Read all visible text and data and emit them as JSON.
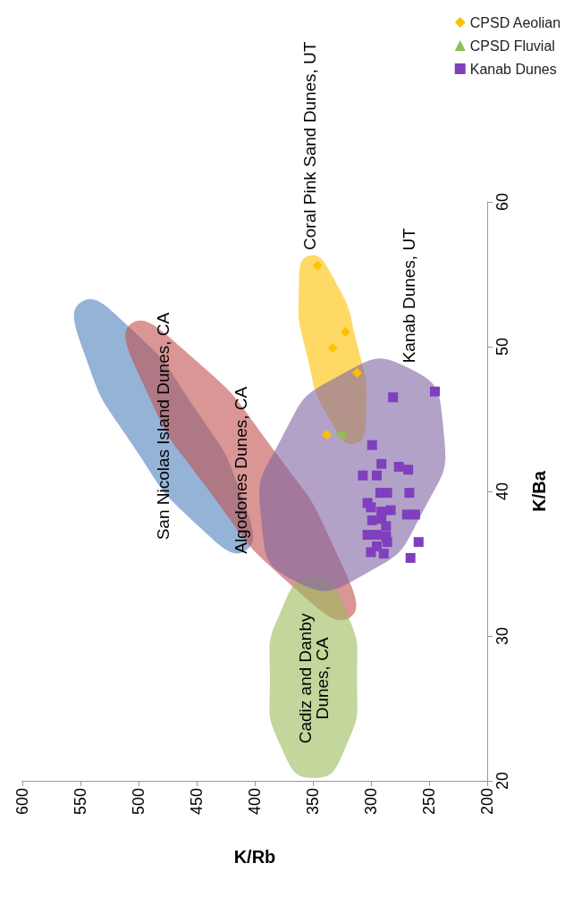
{
  "chart_data": {
    "type": "scatter",
    "xlabel": "K/Rb",
    "ylabel": "K/Ba",
    "xlim": [
      600,
      200
    ],
    "xticks": [
      600,
      550,
      500,
      450,
      400,
      350,
      300,
      250,
      200
    ],
    "ylim": [
      20,
      60
    ],
    "yticks": [
      20,
      30,
      40,
      50,
      60
    ],
    "grid": false,
    "legend": "top right",
    "series": [
      {
        "type": "area",
        "name": "San Nicolas Island Dunes, CA",
        "color": "#4f81bd",
        "values": [
          53.1,
          51.5,
          45.8,
          39.4,
          35.9,
          37.5,
          43.2,
          49.6
        ],
        "x": [
          549,
          510,
          452,
          410,
          408,
          447,
          505,
          547
        ]
      },
      {
        "type": "area",
        "name": "Algodones Dunes, CA",
        "color": "#c0504d",
        "values": [
          51.6,
          49.7,
          43.0,
          35.3,
          31.3,
          33.2,
          40.0,
          47.6
        ],
        "x": [
          506,
          460,
          385,
          327,
          318,
          364,
          439,
          497
        ]
      },
      {
        "type": "area",
        "name": "Cadiz and Danby\nDunes, CA",
        "color": "#9bbb59",
        "values": [
          34.1,
          32.0,
          27.05,
          22.1,
          20.2,
          22.1,
          27.05,
          32.0
        ],
        "x": [
          349,
          376,
          387,
          376,
          349,
          323,
          312,
          323
        ]
      },
      {
        "type": "area",
        "name": "Coral Pink Sand Dunes, UT",
        "color": "#ffc000",
        "values": [
          56.3,
          54.7,
          50.2,
          45.5,
          43.3,
          44.9,
          49.4,
          54.1
        ],
        "x": [
          353,
          332,
          312,
          304,
          314,
          335,
          355,
          362
        ]
      },
      {
        "type": "area",
        "name": "Kanab Dunes, UT",
        "color": "#8064a2",
        "values": [
          48.5,
          44.6,
          38.65,
          34.2,
          33.8,
          37.7,
          43.65,
          48.1
        ],
        "x": [
          267,
          238,
          255,
          307,
          365,
          394,
          377,
          325
        ]
      },
      {
        "name": "CPSD Aeolian",
        "marker": "diamond",
        "color": "#ffc000",
        "values": [
          55.6,
          51.0,
          49.9,
          48.2,
          43.9
        ],
        "x": [
          346,
          322,
          333,
          312,
          338
        ]
      },
      {
        "name": "CPSD Fluvial",
        "marker": "triangle",
        "color": "#8cc152",
        "values": [
          43.9
        ],
        "x": [
          327
        ]
      },
      {
        "name": "Kanab Dunes",
        "marker": "square",
        "color": "#7f3fbf",
        "values": [
          46.5,
          46.9,
          43.2,
          41.9,
          41.7,
          41.5,
          41.1,
          41.1,
          39.9,
          39.9,
          39.9,
          38.9,
          38.7,
          38.4,
          38.4,
          38.0,
          38.1,
          37.6,
          37.0,
          37.0,
          36.5,
          36.5,
          35.8,
          35.7,
          35.4,
          36.2,
          38.6,
          39.2,
          36.9
        ],
        "x": [
          281,
          245,
          299,
          291,
          276,
          268,
          307,
          295,
          292,
          286,
          267,
          300,
          283,
          269,
          262,
          299,
          291,
          287,
          303,
          295,
          286,
          259,
          300,
          289,
          266,
          295,
          291,
          303,
          287
        ]
      }
    ]
  }
}
